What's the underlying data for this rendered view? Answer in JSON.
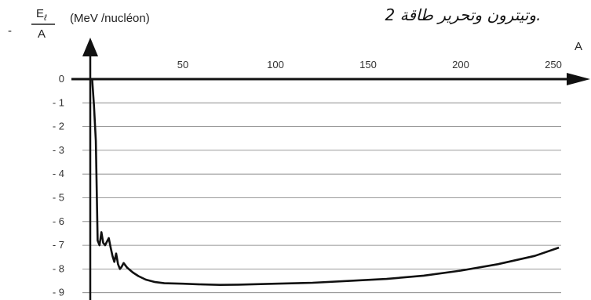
{
  "header_text": "2 وتيترون وتحرير طاقة.",
  "chart_data": {
    "type": "line",
    "title": "",
    "ylabel": {
      "prefix": "-",
      "numerator": "E",
      "subscript": "ℓ",
      "denominator": "A",
      "unit": "(MeV /nucléon)"
    },
    "xlabel": "A",
    "xlim": [
      0,
      265
    ],
    "ylim": [
      -9.3,
      0
    ],
    "x_ticks": [
      50,
      100,
      150,
      200,
      250
    ],
    "y_ticks": [
      0,
      -1,
      -2,
      -3,
      -4,
      -5,
      -6,
      -7,
      -8,
      -9
    ],
    "y_tick_labels": [
      "0",
      "- 1",
      "- 2",
      "- 3",
      "- 4",
      "- 5",
      "- 6",
      "- 7",
      "- 8",
      "- 9"
    ],
    "grid": "horizontal",
    "series": [
      {
        "x": [
          1,
          2,
          3,
          4,
          5,
          6,
          7,
          8,
          9,
          10,
          11,
          12,
          13,
          14,
          15,
          16,
          17,
          18,
          20,
          23,
          26,
          30,
          35,
          40,
          50,
          60,
          70,
          80,
          90,
          100,
          120,
          140,
          160,
          180,
          200,
          220,
          240,
          253
        ],
        "y": [
          0,
          -1.1,
          -2.6,
          -6.8,
          -7.0,
          -6.45,
          -6.9,
          -7.0,
          -6.85,
          -6.7,
          -7.1,
          -7.45,
          -7.7,
          -7.35,
          -7.8,
          -8.0,
          -7.9,
          -7.75,
          -7.95,
          -8.15,
          -8.3,
          -8.45,
          -8.55,
          -8.6,
          -8.62,
          -8.65,
          -8.67,
          -8.66,
          -8.64,
          -8.62,
          -8.58,
          -8.5,
          -8.42,
          -8.28,
          -8.07,
          -7.8,
          -7.45,
          -7.1
        ]
      }
    ]
  }
}
